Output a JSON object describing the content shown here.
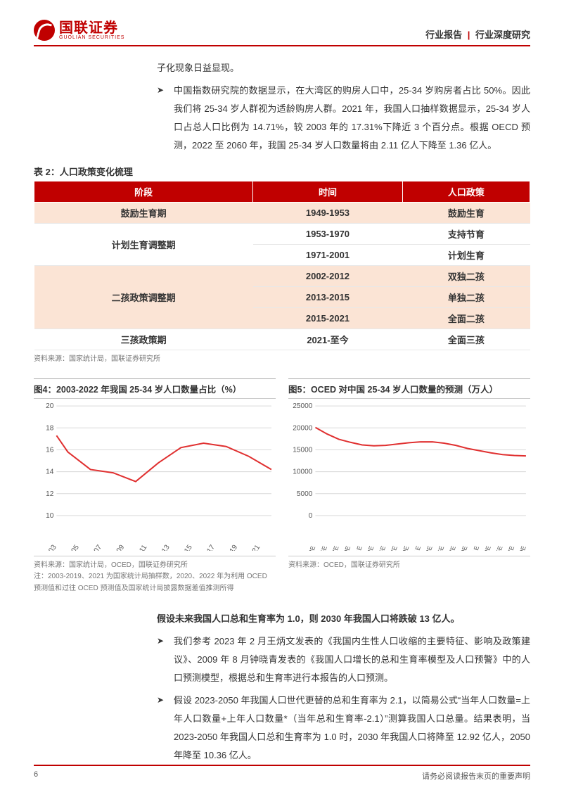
{
  "header": {
    "logo_cn": "国联证券",
    "logo_en": "GUOLIAN SECURITIES",
    "right_a": "行业报告",
    "right_sep": "|",
    "right_b": "行业深度研究"
  },
  "intro_tail": "子化现象日益显现。",
  "para1": "中国指数研究院的数据显示，在大湾区的购房人口中，25-34 岁购房者占比 50%。因此我们将 25-34 岁人群视为适龄购房人群。2021 年，我国人口抽样数据显示，25-34 岁人口占总人口比例为 14.71%，较 2003 年的 17.31%下降近 3 个百分点。根据 OECD 预测，2022 至 2060 年，我国 25-34 岁人口数量将由 2.11 亿人下降至 1.36 亿人。",
  "table": {
    "title": "表 2：人口政策变化梳理",
    "headers": [
      "阶段",
      "时间",
      "人口政策"
    ],
    "rows": [
      {
        "band": "a",
        "stage": "鼓励生育期",
        "time": "1949-1953",
        "policy": "鼓励生育",
        "rowspan": 1
      },
      {
        "band": "b",
        "stage": "计划生育调整期",
        "time": "1953-1970",
        "policy": "支持节育",
        "rowspan": 2
      },
      {
        "band": "b",
        "stage": "",
        "time": "1971-2001",
        "policy": "计划生育",
        "rowspan": 0
      },
      {
        "band": "a",
        "stage": "二孩政策调整期",
        "time": "2002-2012",
        "policy": "双独二孩",
        "rowspan": 3
      },
      {
        "band": "a",
        "stage": "",
        "time": "2013-2015",
        "policy": "单独二孩",
        "rowspan": 0
      },
      {
        "band": "a",
        "stage": "",
        "time": "2015-2021",
        "policy": "全面二孩",
        "rowspan": 0
      },
      {
        "band": "b",
        "stage": "三孩政策期",
        "time": "2021-至今",
        "policy": "全面三孩",
        "rowspan": 1
      }
    ],
    "source": "资料来源：国家统计局，国联证券研究所"
  },
  "chart4": {
    "title": "图4：2003-2022 年我国 25-34 岁人口数量占比（%）",
    "type": "line",
    "color": "#e03030",
    "grid_color": "#d9d9d9",
    "bg": "#ffffff",
    "line_width": 2,
    "ylim": [
      10,
      20
    ],
    "yticks": [
      10,
      12,
      14,
      16,
      18,
      20
    ],
    "years": [
      2003,
      2005,
      2007,
      2009,
      2011,
      2013,
      2015,
      2017,
      2019,
      2021
    ],
    "values": [
      17.3,
      15.8,
      14.2,
      13.9,
      13.1,
      14.8,
      16.2,
      16.6,
      16.3,
      15.4,
      14.2
    ],
    "xvals": [
      2003,
      2004,
      2006,
      2008,
      2010,
      2012,
      2014,
      2016,
      2018,
      2020,
      2022
    ],
    "source": "资料来源：国家统计局，OCED，国联证券研究所",
    "note": "注：2003-2019、2021 为国家统计局抽样数，2020、2022 年为利用 OCED 预测值和过往 OCED 预测值及国家统计局披露数据差值推测所得"
  },
  "chart5": {
    "title": "图5：OCED 对中国 25-34 岁人口数量的预测（万人）",
    "type": "line",
    "color": "#e03030",
    "grid_color": "#d9d9d9",
    "bg": "#ffffff",
    "line_width": 2,
    "ylim": [
      0,
      25000
    ],
    "yticks": [
      0,
      5000,
      10000,
      15000,
      20000,
      25000
    ],
    "labels": [
      "2023E",
      "2025E",
      "2027E",
      "2029E",
      "2031E",
      "2033E",
      "2035E",
      "2037E",
      "2039E",
      "2041E",
      "2043E",
      "2045E",
      "2047E",
      "2049E",
      "2051E",
      "2053E",
      "2055E",
      "2057E",
      "2059E"
    ],
    "values": [
      20100,
      18600,
      17400,
      16700,
      16100,
      15900,
      16000,
      16300,
      16600,
      16800,
      16800,
      16500,
      16000,
      15300,
      14800,
      14300,
      13900,
      13700,
      13600
    ],
    "source": "资料来源：OCED，国联证券研究所"
  },
  "heading2": "假设未来我国人口总和生育率为 1.0，则 2030 年我国人口将跌破 13 亿人。",
  "para2": "我们参考 2023 年 2 月王炳文发表的《我国内生性人口收缩的主要特征、影响及政策建议》、2009 年 8 月钟晓青发表的《我国人口增长的总和生育率模型及人口预警》中的人口预测模型，根据总和生育率进行本报告的人口预测。",
  "para3": "假设 2023-2050 年我国人口世代更替的总和生育率为 2.1，以简易公式“当年人口数量=上年人口数量+上年人口数量*（当年总和生育率-2.1）”测算我国人口总量。结果表明，当 2023-2050 年我国人口总和生育率为 1.0 时，2030 年我国人口将降至 12.92 亿人，2050 年降至 10.36 亿人。",
  "footer": {
    "page": "6",
    "disclaimer": "请务必阅读报告末页的重要声明"
  }
}
